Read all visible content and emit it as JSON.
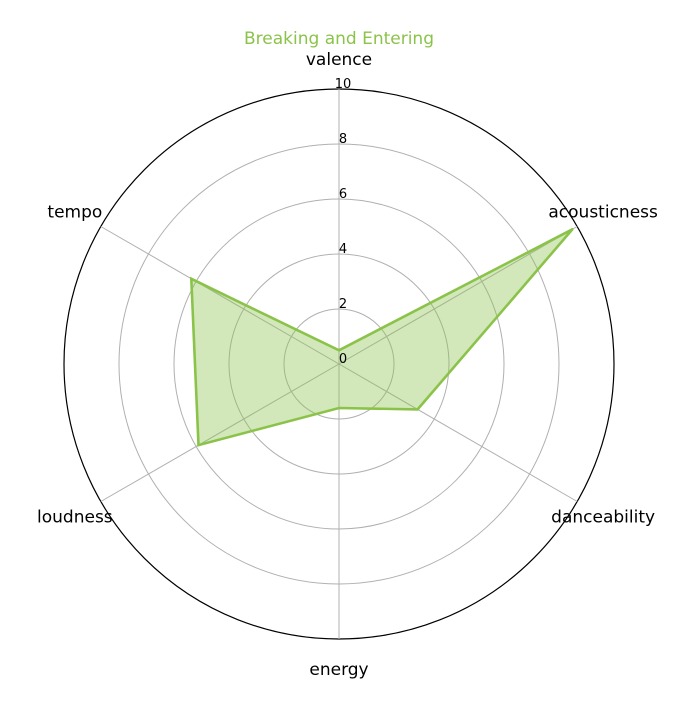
{
  "colors": {
    "series": "#8bc34a",
    "grid": "#b0b0b0",
    "frame": "#000000"
  },
  "chart_data": {
    "type": "radar",
    "title": "Breaking and Entering",
    "axes": [
      "valence",
      "acousticness",
      "danceability",
      "energy",
      "loudness",
      "tempo"
    ],
    "rlim": [
      0,
      10
    ],
    "rticks": [
      "0",
      "2",
      "4",
      "6",
      "8",
      "10"
    ],
    "grid": true,
    "series": [
      {
        "values": [
          0.5,
          9.8,
          3.3,
          1.6,
          5.9,
          6.2
        ]
      }
    ]
  }
}
